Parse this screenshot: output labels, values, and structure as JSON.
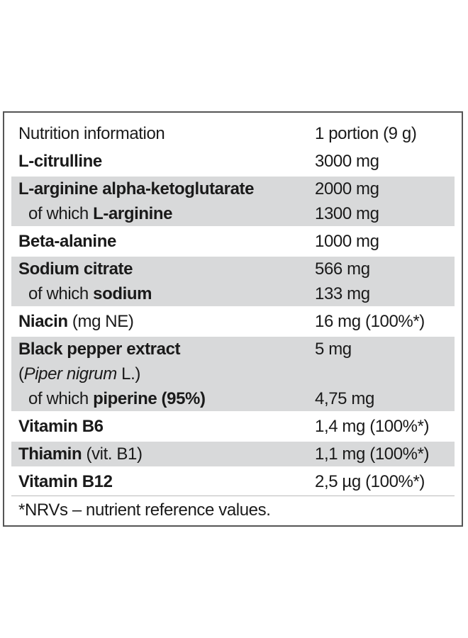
{
  "table": {
    "rows": [
      {
        "shaded": false,
        "lines": [
          {
            "indent": false,
            "name": [
              {
                "text": "Nutrition information",
                "bold": false
              }
            ],
            "amount": "1 portion (9 g)"
          }
        ]
      },
      {
        "shaded": false,
        "lines": [
          {
            "indent": false,
            "name": [
              {
                "text": "L-citrulline",
                "bold": true
              }
            ],
            "amount": "3000 mg"
          }
        ]
      },
      {
        "shaded": true,
        "lines": [
          {
            "indent": false,
            "name": [
              {
                "text": "L-arginine alpha-ketoglutarate",
                "bold": true
              }
            ],
            "amount": "2000 mg"
          },
          {
            "indent": true,
            "name": [
              {
                "text": "of which ",
                "bold": false
              },
              {
                "text": "L-arginine",
                "bold": true
              }
            ],
            "amount": "1300 mg"
          }
        ]
      },
      {
        "shaded": false,
        "lines": [
          {
            "indent": false,
            "name": [
              {
                "text": "Beta-alanine",
                "bold": true
              }
            ],
            "amount": "1000 mg"
          }
        ]
      },
      {
        "shaded": true,
        "lines": [
          {
            "indent": false,
            "name": [
              {
                "text": "Sodium citrate",
                "bold": true
              }
            ],
            "amount": "566 mg"
          },
          {
            "indent": true,
            "name": [
              {
                "text": "of which ",
                "bold": false
              },
              {
                "text": "sodium",
                "bold": true
              }
            ],
            "amount": "133 mg"
          }
        ]
      },
      {
        "shaded": false,
        "lines": [
          {
            "indent": false,
            "name": [
              {
                "text": "Niacin",
                "bold": true
              },
              {
                "text": " (mg NE)",
                "bold": false
              }
            ],
            "amount": "16 mg (100%*)"
          }
        ]
      },
      {
        "shaded": true,
        "lines": [
          {
            "indent": false,
            "name": [
              {
                "text": "Black pepper extract",
                "bold": true
              }
            ],
            "amount": "5 mg"
          },
          {
            "indent": false,
            "name": [
              {
                "text": "(",
                "bold": false
              },
              {
                "text": "Piper nigrum",
                "bold": false,
                "italic": true
              },
              {
                "text": " L.)",
                "bold": false
              }
            ],
            "amount": null
          },
          {
            "indent": true,
            "name": [
              {
                "text": "of which ",
                "bold": false
              },
              {
                "text": "piperine (95%)",
                "bold": true
              }
            ],
            "amount": "4,75 mg"
          }
        ]
      },
      {
        "shaded": false,
        "lines": [
          {
            "indent": false,
            "name": [
              {
                "text": "Vitamin B6",
                "bold": true
              }
            ],
            "amount": "1,4 mg (100%*)"
          }
        ]
      },
      {
        "shaded": true,
        "lines": [
          {
            "indent": false,
            "name": [
              {
                "text": "Thiamin",
                "bold": true
              },
              {
                "text": " (vit. B1)",
                "bold": false
              }
            ],
            "amount": "1,1 mg (100%*)"
          }
        ]
      },
      {
        "shaded": false,
        "lines": [
          {
            "indent": false,
            "name": [
              {
                "text": "Vitamin B12",
                "bold": true
              }
            ],
            "amount": "2,5 µg (100%*)"
          }
        ]
      }
    ],
    "footnote": "*NRVs – nutrient reference values."
  }
}
